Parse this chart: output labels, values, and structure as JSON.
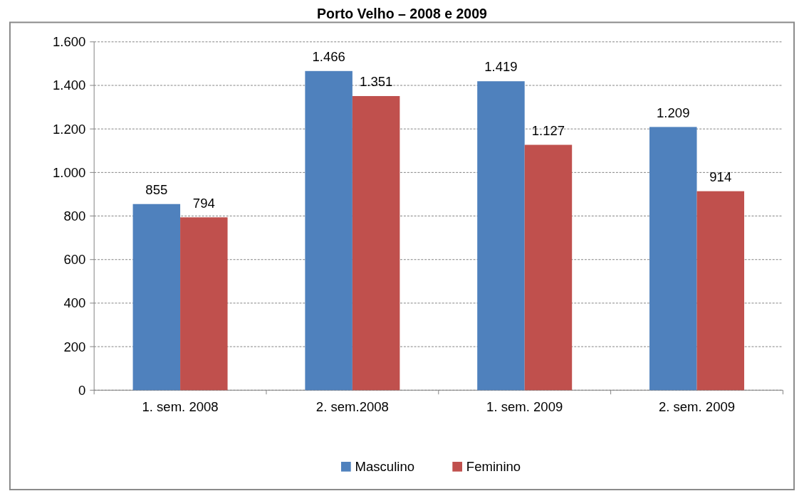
{
  "chart_data": {
    "type": "bar",
    "title": "Porto Velho – 2008 e 2009",
    "categories": [
      "1. sem. 2008",
      "2. sem.2008",
      "1. sem. 2009",
      "2. sem. 2009"
    ],
    "series": [
      {
        "name": "Masculino",
        "color": "#4f81bd",
        "values": [
          855,
          1466,
          1419,
          1209
        ],
        "value_labels": [
          "855",
          "1.466",
          "1.419",
          "1.209"
        ]
      },
      {
        "name": "Feminino",
        "color": "#c0504d",
        "values": [
          794,
          1351,
          1127,
          914
        ],
        "value_labels": [
          "794",
          "1.351",
          "1.127",
          "914"
        ]
      }
    ],
    "ylim": [
      0,
      1600
    ],
    "yticks": [
      {
        "value": 0,
        "label": "0"
      },
      {
        "value": 200,
        "label": "200"
      },
      {
        "value": 400,
        "label": "400"
      },
      {
        "value": 600,
        "label": "600"
      },
      {
        "value": 800,
        "label": "800"
      },
      {
        "value": 1000,
        "label": "1.000"
      },
      {
        "value": 1200,
        "label": "1.200"
      },
      {
        "value": 1400,
        "label": "1.400"
      },
      {
        "value": 1600,
        "label": "1.600"
      }
    ],
    "grid": "y",
    "legend": "bottom"
  }
}
